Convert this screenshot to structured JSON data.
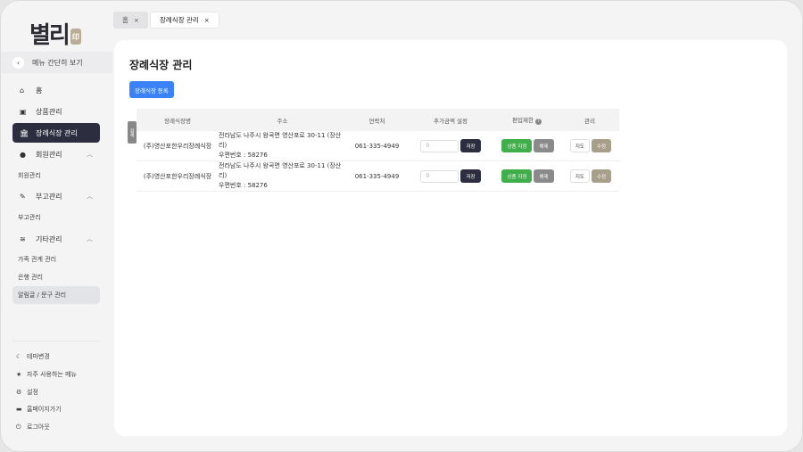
{
  "sidebar": {
    "logo": "별리",
    "logo_sub": "별리",
    "collapse_label": "메뉴 간단히 보기",
    "items": [
      {
        "label": "홈",
        "icon": "home-icon"
      },
      {
        "label": "상품관리",
        "icon": "box-icon"
      },
      {
        "label": "장례식장 관리",
        "icon": "bank-icon",
        "active": true
      },
      {
        "label": "회원관리",
        "icon": "user-circle-icon"
      },
      {
        "label": "부고관리",
        "icon": "edit-icon"
      },
      {
        "label": "기타관리",
        "icon": "layers-icon"
      }
    ],
    "subitems": {
      "member": "회원관리",
      "obituary": "부고관리",
      "family": "가족 관계 관리",
      "bank": "은행 관리",
      "notice": "알림글 / 문구 관리"
    },
    "footer": [
      "테마변경",
      "자주 사용하는 메뉴",
      "설정",
      "홈페이지가기",
      "로그아웃"
    ]
  },
  "tabs": [
    {
      "label": "홈"
    },
    {
      "label": "장례식장 관리",
      "active": true
    }
  ],
  "page": {
    "title": "장례식장 관리",
    "register_label": "장례식장 등록",
    "search_tab": "검색"
  },
  "table": {
    "headers": [
      "장례식장명",
      "주소",
      "연락처",
      "추가금액 설정",
      "편입제한",
      "관리"
    ],
    "rows": [
      {
        "name": "(주)영산포한우리장례식장",
        "address": "전라남도 나주시 왕곡면 영산포로 30-11 (장산리)",
        "postal": "우편번호 : 58276",
        "phone": "061-335-4949",
        "amount_placeholder": "0",
        "save": "저장",
        "assign": "상품 지정",
        "release": "해제",
        "map": "지도",
        "edit": "수정"
      },
      {
        "name": "(주)영산포한우리장례식장",
        "address": "전라남도 나주시 왕곡면 영산포로 30-11 (장산리)",
        "postal": "우편번호 : 58276",
        "phone": "061-335-4949",
        "amount_placeholder": "0",
        "save": "저장",
        "assign": "상품 지정",
        "release": "해제",
        "map": "지도",
        "edit": "수정"
      }
    ]
  },
  "colors": {
    "primary": "#3a82f6",
    "active_nav": "#2c2e3f",
    "green": "#3fae4b",
    "tan": "#a79f8a"
  }
}
